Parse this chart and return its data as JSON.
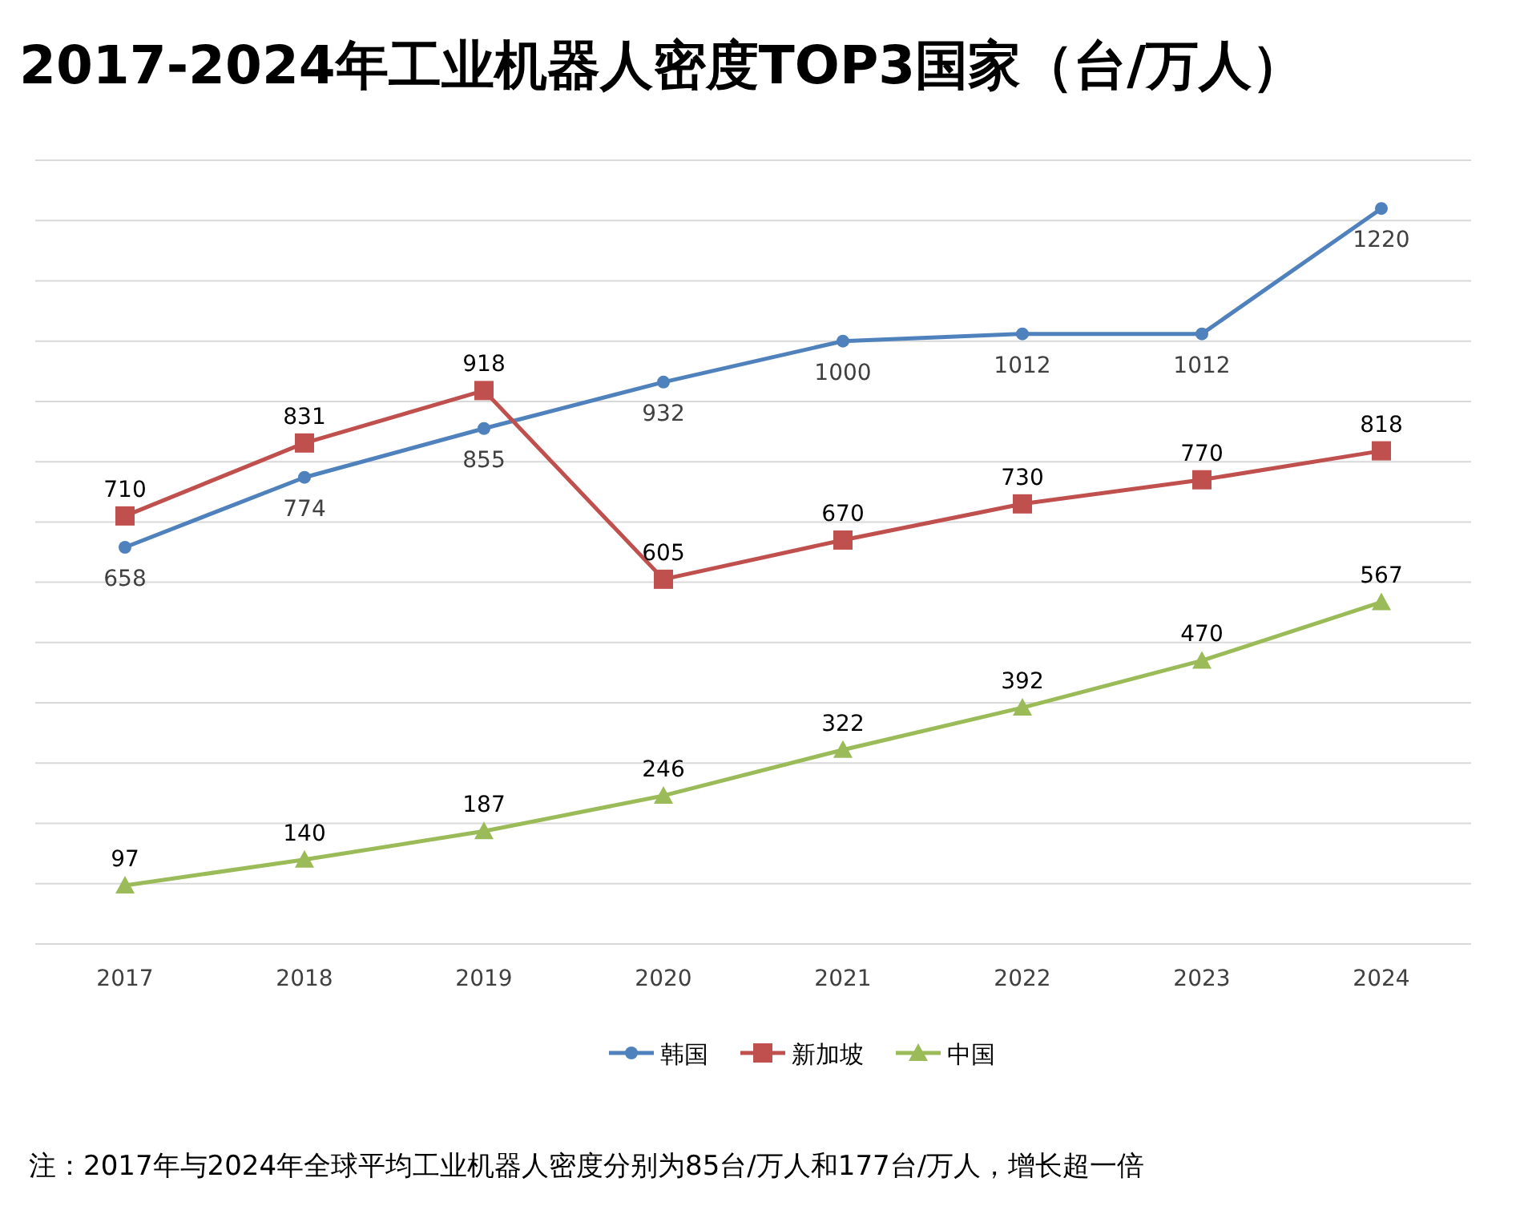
{
  "chart_data": {
    "type": "line",
    "title": "2017-2024年工业机器人密度TOP3国家（台/万人）",
    "categories": [
      "2017",
      "2018",
      "2019",
      "2020",
      "2021",
      "2022",
      "2023",
      "2024"
    ],
    "series": [
      {
        "name": "韩国",
        "color": "#4f81bd",
        "marker": "circle",
        "values": [
          658,
          774,
          855,
          932,
          1000,
          1012,
          1012,
          1220
        ]
      },
      {
        "name": "新加坡",
        "color": "#c0504d",
        "marker": "square",
        "values": [
          710,
          831,
          918,
          605,
          670,
          730,
          770,
          818
        ]
      },
      {
        "name": "中国",
        "color": "#9bbb59",
        "marker": "triangle",
        "values": [
          97,
          140,
          187,
          246,
          322,
          392,
          470,
          567
        ]
      }
    ],
    "data_labels": true,
    "ylim": [
      0,
      1300
    ],
    "yticks": [
      {
        "value": 0,
        "label": null
      },
      {
        "value": 100,
        "label": null
      },
      {
        "value": 200,
        "label": null
      },
      {
        "value": 300,
        "label": null
      },
      {
        "value": 400,
        "label": null
      },
      {
        "value": 500,
        "label": null
      },
      {
        "value": 600,
        "label": null
      },
      {
        "value": 700,
        "label": null
      },
      {
        "value": 800,
        "label": null
      },
      {
        "value": 900,
        "label": null
      },
      {
        "value": 1000,
        "label": null
      },
      {
        "value": 1100,
        "label": null
      },
      {
        "value": 1200,
        "label": null
      },
      {
        "value": 1300,
        "label": null
      }
    ],
    "grid": "y",
    "legend": "bottom",
    "line_style": "solid",
    "annotations": [
      "注：2017年与2024年全球平均工业机器人密度分别为85台/万人和177台/万人，增长超一倍"
    ]
  }
}
